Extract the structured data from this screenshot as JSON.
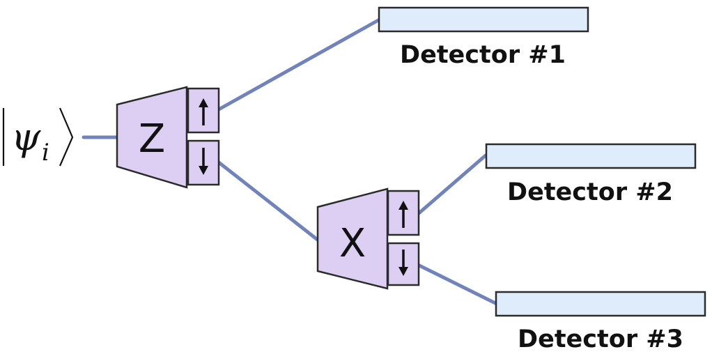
{
  "state": {
    "symbol": "ψ",
    "subscript": "i"
  },
  "analyzers": [
    {
      "basis": "Z",
      "ports": [
        "up",
        "down"
      ]
    },
    {
      "basis": "X",
      "ports": [
        "up",
        "down"
      ]
    }
  ],
  "detectors": [
    {
      "label": "Detector #1"
    },
    {
      "label": "Detector #2"
    },
    {
      "label": "Detector #3"
    }
  ],
  "colors": {
    "beam": "#7083bd",
    "analyzer_fill": "#ddcff4",
    "detector_fill": "#deecfb",
    "outline": "#2b2b2b"
  },
  "icons": {
    "up_port": "arrow-up-icon",
    "down_port": "arrow-down-icon"
  }
}
